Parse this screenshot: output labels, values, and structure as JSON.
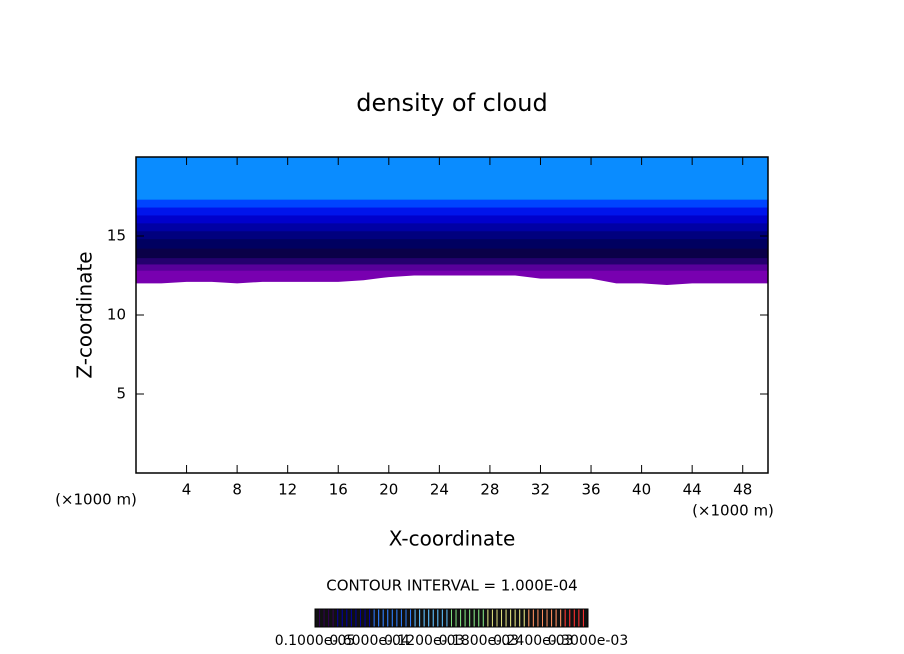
{
  "chart_data": {
    "type": "contour",
    "title": "density of cloud",
    "xlabel": "X-coordinate",
    "ylabel": "Z-coordinate",
    "x_unit_label": "(×1000 m)",
    "annotation": "CONTOUR INTERVAL = 1.000E-04",
    "xlim": [
      0,
      50
    ],
    "ylim": [
      0,
      20
    ],
    "xticks": [
      4,
      8,
      12,
      16,
      20,
      24,
      28,
      32,
      36,
      40,
      44,
      48
    ],
    "yticks": [
      5,
      10,
      15
    ],
    "x": [
      0,
      2,
      4,
      6,
      8,
      10,
      12,
      14,
      16,
      18,
      20,
      22,
      24,
      26,
      28,
      30,
      32,
      34,
      36,
      38,
      40,
      42,
      44,
      46,
      48,
      50
    ],
    "cloud_base": [
      12,
      12,
      12.1,
      12.1,
      12,
      12.1,
      12.1,
      12.1,
      12.1,
      12.2,
      12.4,
      12.5,
      12.5,
      12.5,
      12.5,
      12.5,
      12.3,
      12.3,
      12.3,
      12,
      12,
      11.9,
      12,
      12,
      12,
      12
    ],
    "band_bottoms": [
      12.8,
      13.2,
      13.6,
      14.2,
      14.8,
      15.3,
      15.8,
      16.3,
      16.8,
      17.3
    ],
    "band_colors": [
      "#58009a",
      "#24006e",
      "#0a0048",
      "#000060",
      "#00007e",
      "#0000a4",
      "#0000cc",
      "#0014ec",
      "#0044ff",
      "#0a8cff"
    ],
    "base_color": "#7800b0",
    "colorbar_colors": [
      "#300050",
      "#0000a0",
      "#3080ff",
      "#60c0ff",
      "#80e080",
      "#e0e080",
      "#ff9060",
      "#ff3030"
    ],
    "colorbar_labels": [
      "0.1000e-05",
      "0.6000e-04",
      "0.1200e-03",
      "0.1800e-03",
      "0.2400e-03",
      "0.3000e-03"
    ]
  }
}
